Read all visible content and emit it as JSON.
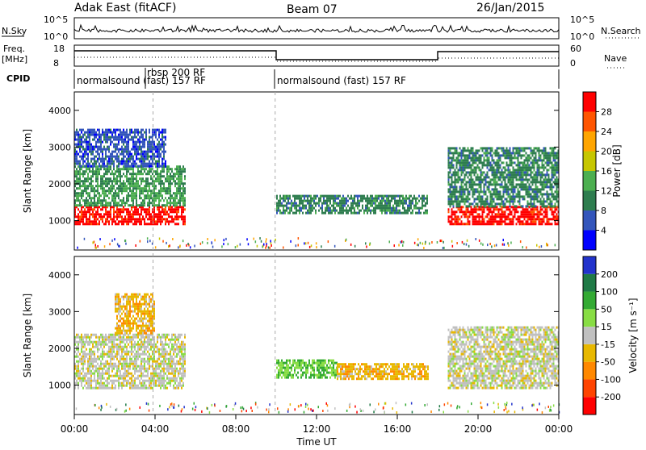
{
  "header": {
    "site": "Adak East (fitACF)",
    "beam": "Beam 07",
    "date": "26/Jan/2015"
  },
  "panels": {
    "noise": {
      "left_label": "N.Sky",
      "right_label": "N.Search",
      "ticks_left": [
        "10^5",
        "10^0"
      ],
      "ticks_right": [
        "10^5",
        "10^0"
      ]
    },
    "freq": {
      "left_label_1": "Freq.",
      "left_label_2": "[MHz]",
      "right_label": "Nave",
      "ticks_left": [
        "18",
        "8"
      ],
      "ticks_right": [
        "60",
        "0"
      ]
    },
    "cpid": {
      "label": "CPID",
      "segments": [
        "normalsound (fast) 157 RF",
        "rbsp 200 RF",
        "normalsound (fast) 157 RF"
      ]
    }
  },
  "x_axis": {
    "title": "Time UT",
    "ticks": [
      "00:00",
      "04:00",
      "08:00",
      "12:00",
      "16:00",
      "20:00",
      "00:00"
    ]
  },
  "colors": {
    "power": [
      "#0000ff",
      "#3355bb",
      "#2e7d4f",
      "#4caf50",
      "#c6c600",
      "#ffa500",
      "#ff5500",
      "#ff0000"
    ],
    "velocity": [
      "#2233cc",
      "#1f7a46",
      "#33aa33",
      "#88dd44",
      "#c0c0c0",
      "#e8b800",
      "#ff8800",
      "#ff4400",
      "#ff0000"
    ]
  },
  "chart_data": [
    {
      "type": "heatmap",
      "title": "",
      "xlabel": "Time UT",
      "ylabel": "Slant Range [km]",
      "x_range": [
        "00:00",
        "00:00"
      ],
      "y_range": [
        200,
        4500
      ],
      "y_ticks": [
        "1000",
        "2000",
        "3000",
        "4000"
      ],
      "colorbar": {
        "label": "Power [dB]",
        "ticks": [
          "4",
          "8",
          "12",
          "16",
          "20",
          "24",
          "28"
        ],
        "range": [
          0,
          32
        ]
      },
      "features": [
        {
          "start_hr": 0.0,
          "end_hr": 5.5,
          "range_km": [
            900,
            1400
          ],
          "value": 30
        },
        {
          "start_hr": 0.0,
          "end_hr": 5.5,
          "range_km": [
            1400,
            2500
          ],
          "value": 12
        },
        {
          "start_hr": 0.0,
          "end_hr": 4.5,
          "range_km": [
            2500,
            3500
          ],
          "value": 6
        },
        {
          "start_hr": 10.0,
          "end_hr": 17.5,
          "range_km": [
            1200,
            1700
          ],
          "value": 10
        },
        {
          "start_hr": 18.5,
          "end_hr": 24.0,
          "range_km": [
            900,
            1400
          ],
          "value": 30
        },
        {
          "start_hr": 18.5,
          "end_hr": 24.0,
          "range_km": [
            1400,
            3000
          ],
          "value": 10
        }
      ]
    },
    {
      "type": "heatmap",
      "title": "",
      "xlabel": "Time UT",
      "ylabel": "Slant Range [km]",
      "x_range": [
        "00:00",
        "00:00"
      ],
      "y_range": [
        200,
        4500
      ],
      "y_ticks": [
        "1000",
        "2000",
        "3000",
        "4000"
      ],
      "colorbar": {
        "label": "Velocity [m s⁻¹]",
        "ticks": [
          "200",
          "100",
          "50",
          "15",
          "-15",
          "-50",
          "-100",
          "-200"
        ],
        "range": [
          -250,
          250
        ]
      },
      "features": [
        {
          "start_hr": 0.0,
          "end_hr": 5.5,
          "range_km": [
            900,
            2400
          ],
          "value": 0
        },
        {
          "start_hr": 2.0,
          "end_hr": 4.0,
          "range_km": [
            2400,
            3500
          ],
          "value": -60
        },
        {
          "start_hr": 10.0,
          "end_hr": 13.0,
          "range_km": [
            1200,
            1700
          ],
          "value": 80
        },
        {
          "start_hr": 13.0,
          "end_hr": 17.5,
          "range_km": [
            1200,
            1600
          ],
          "value": -60
        },
        {
          "start_hr": 18.5,
          "end_hr": 24.0,
          "range_km": [
            900,
            2600
          ],
          "value": 0
        }
      ]
    }
  ]
}
